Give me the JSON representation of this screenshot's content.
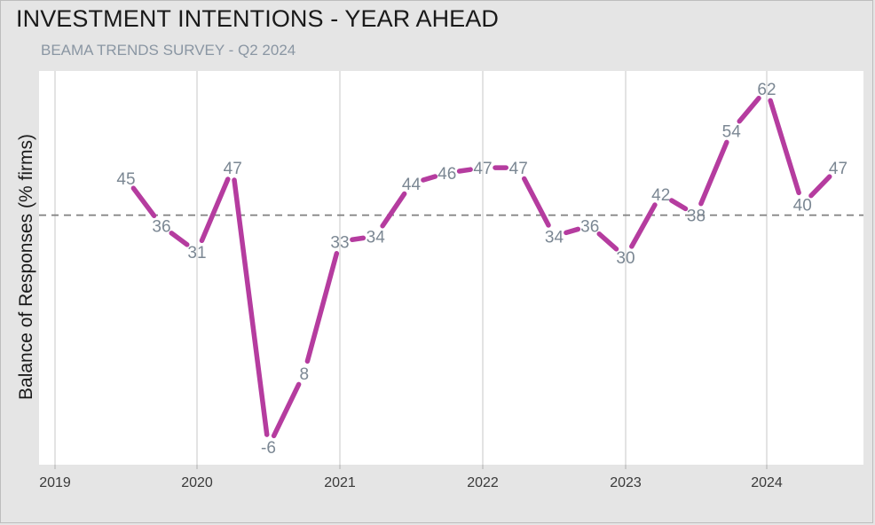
{
  "title": "INVESTMENT INTENTIONS - YEAR AHEAD",
  "subtitle": "BEAMA TRENDS SURVEY - Q2 2024",
  "colors": {
    "series": "#b53c9f",
    "reference_line": "#808080",
    "plot_background": "#ffffff",
    "page_background": "#e5e5e5",
    "grid": "#dcdcdc"
  },
  "chart_data": {
    "type": "line",
    "title": "INVESTMENT INTENTIONS - YEAR AHEAD",
    "subtitle": "BEAMA TRENDS SURVEY - Q2 2024",
    "xlabel": "",
    "ylabel": "Balance of Responses (% firms)",
    "x_ticks": [
      "2019",
      "2020",
      "2021",
      "2022",
      "2023",
      "2024"
    ],
    "x": [
      "2019-Q2",
      "2019-Q3",
      "2019-Q4",
      "2020-Q1",
      "2020-Q2",
      "2020-Q3",
      "2020-Q4",
      "2021-Q1",
      "2021-Q2",
      "2021-Q3",
      "2021-Q4",
      "2022-Q1",
      "2022-Q2",
      "2022-Q3",
      "2022-Q4",
      "2023-Q1",
      "2023-Q2",
      "2023-Q3",
      "2023-Q4",
      "2024-Q1",
      "2024-Q2"
    ],
    "values": [
      45,
      36,
      31,
      47,
      -6,
      8,
      33,
      34,
      44,
      46,
      47,
      47,
      34,
      36,
      30,
      42,
      38,
      54,
      62,
      40,
      47
    ],
    "labels": [
      "45",
      "36",
      "31",
      "47",
      "-6",
      "8",
      "33",
      "34",
      "44",
      "46",
      "47",
      "47",
      "34",
      "36",
      "30",
      "42",
      "38",
      "54",
      "62",
      "40",
      "47"
    ],
    "reference_line": 38,
    "ylim": [
      -8,
      66
    ],
    "grid": "vertical",
    "legend": "none"
  }
}
